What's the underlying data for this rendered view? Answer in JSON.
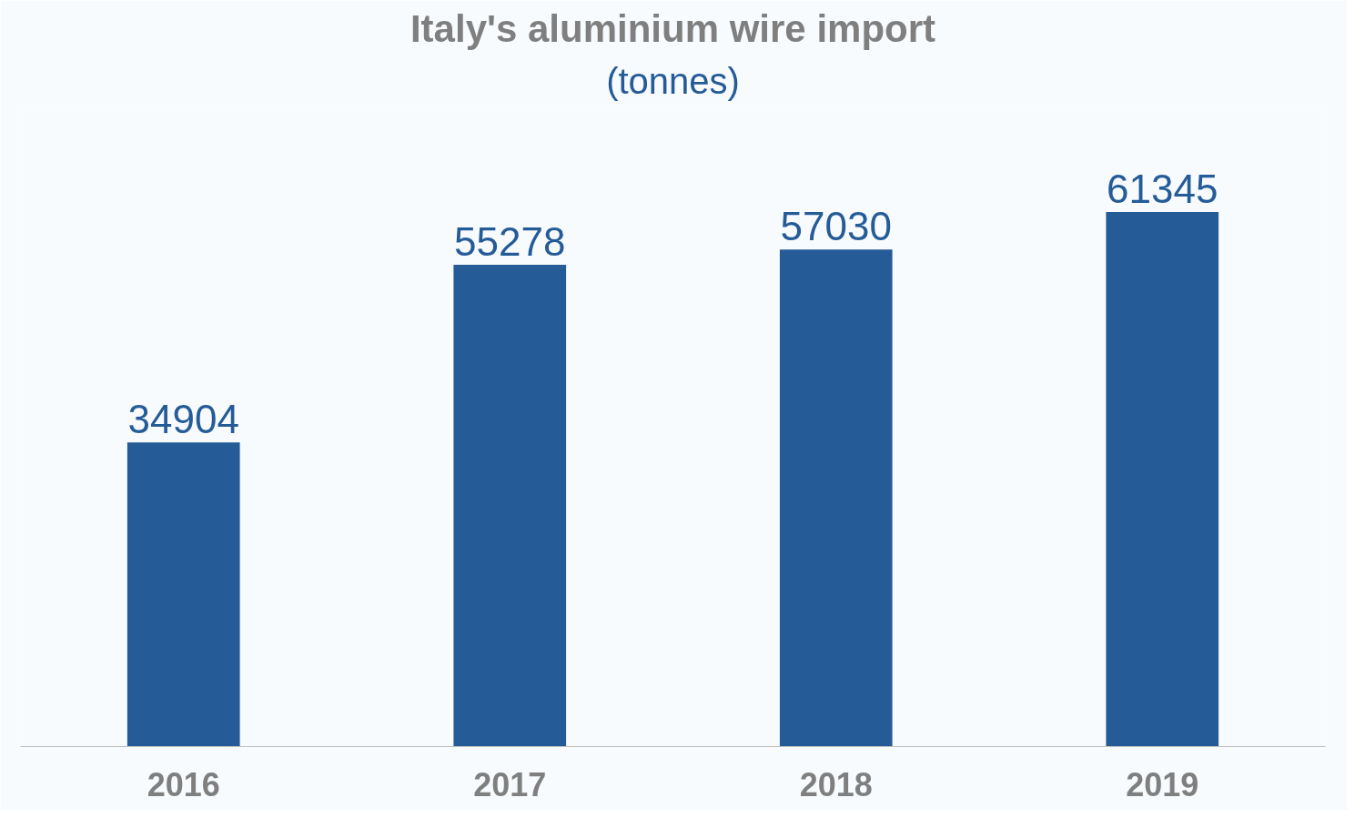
{
  "chart_data": {
    "type": "bar",
    "title": "Italy's aluminium wire import",
    "subtitle": "(tonnes)",
    "categories": [
      "2016",
      "2017",
      "2018",
      "2019"
    ],
    "values": [
      34904,
      55278,
      57030,
      61345
    ],
    "color": "#255b97",
    "data_labels": true,
    "grid": false
  }
}
